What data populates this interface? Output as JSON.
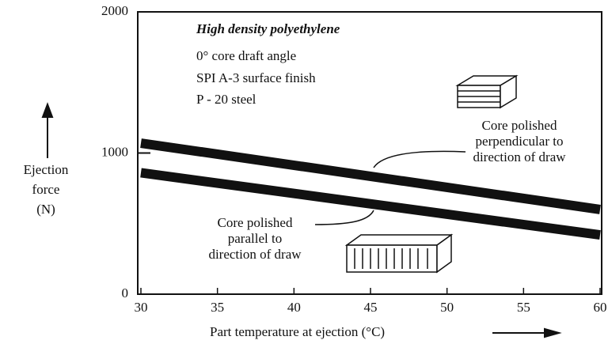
{
  "chart_data": {
    "type": "line",
    "notes": [
      "High density polyethylene",
      "0° core draft angle",
      "SPI A-3 surface finish",
      "P - 20 steel"
    ],
    "ylabel": [
      "Ejection",
      "force",
      "(N)"
    ],
    "xlabel": "Part temperature at ejection (°C)",
    "x": [
      30,
      60
    ],
    "series": [
      {
        "color": "#111111",
        "values": [
          1070,
          600
        ]
      },
      {
        "color": "#111111",
        "values": [
          860,
          420
        ]
      }
    ],
    "annotations": [
      {
        "lines": [
          "Core polished",
          "perpendicular to",
          "direction of draw"
        ]
      },
      {
        "lines": [
          "Core polished",
          "parallel to",
          "direction of draw"
        ]
      }
    ],
    "xlim": [
      30,
      60
    ],
    "xticks": [
      30,
      35,
      40,
      45,
      50,
      55,
      60
    ],
    "ylim": [
      0,
      2000
    ],
    "yticks": [
      0,
      1000,
      2000
    ]
  }
}
